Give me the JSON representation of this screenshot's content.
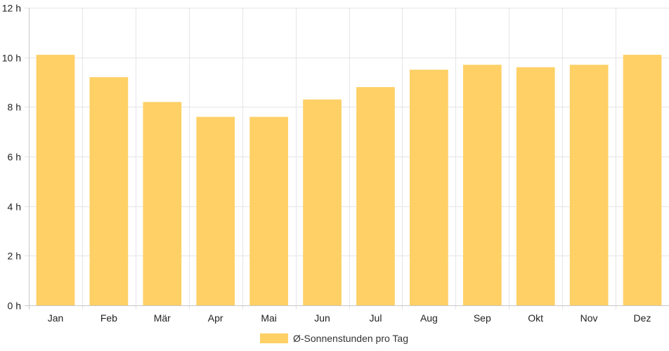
{
  "chart_data": {
    "type": "bar",
    "categories": [
      "Jan",
      "Feb",
      "Mär",
      "Apr",
      "Mai",
      "Jun",
      "Jul",
      "Aug",
      "Sep",
      "Okt",
      "Nov",
      "Dez"
    ],
    "series": [
      {
        "name": "Ø-Sonnenstunden pro Tag",
        "values": [
          10.1,
          9.2,
          8.2,
          7.6,
          7.6,
          8.3,
          8.8,
          9.5,
          9.7,
          9.6,
          9.7,
          10.1
        ]
      }
    ],
    "ylim": [
      0,
      12
    ],
    "yticks": [
      "0 h",
      "2 h",
      "4 h",
      "6 h",
      "8 h",
      "10 h",
      "12 h"
    ],
    "grid": true,
    "legend_position": "bottom",
    "colors": {
      "bar": "#fed065",
      "grid": "#e5e5e5",
      "axis": "#c8c8c8"
    }
  }
}
